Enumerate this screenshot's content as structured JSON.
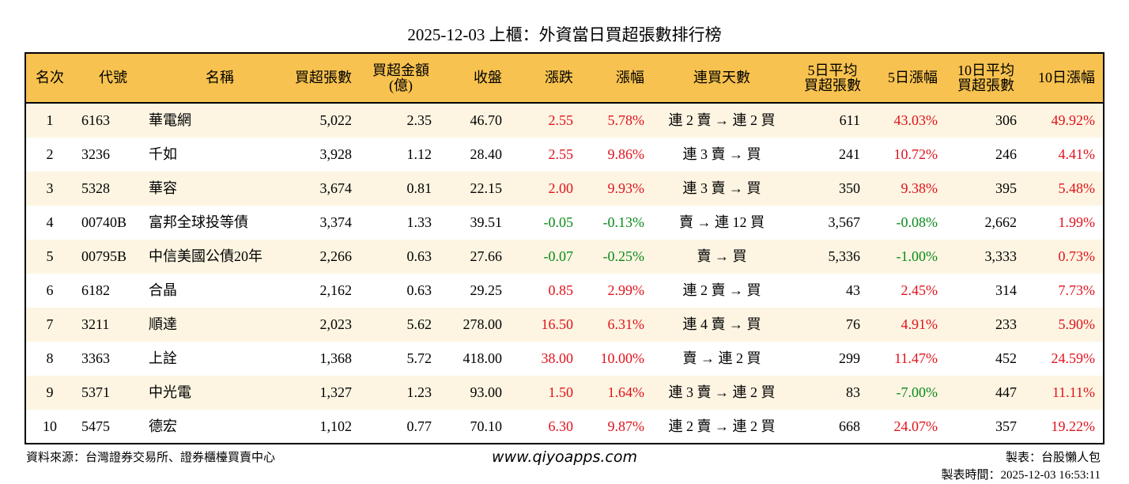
{
  "title": "2025-12-03 上櫃：外資當日買超張數排行榜",
  "headers": [
    "名次",
    "代號",
    "名稱",
    "買超張數",
    "買超金額\n(億)",
    "收盤",
    "漲跌",
    "漲幅",
    "連買天數",
    "5日平均\n買超張數",
    "5日漲幅",
    "10日平均\n買超張數",
    "10日漲幅"
  ],
  "colors": {
    "header_bg": "#f7c24f",
    "row_alt": "#fdf5e2",
    "up": "#e0121b",
    "down": "#0a8a1a"
  },
  "rows": [
    [
      "1",
      "6163",
      "華電網",
      "5,022",
      "2.35",
      "46.70",
      "2.55",
      "5.78%",
      "連 2 賣 → 連 2 買",
      "611",
      "43.03%",
      "306",
      "49.92%"
    ],
    [
      "2",
      "3236",
      "千如",
      "3,928",
      "1.12",
      "28.40",
      "2.55",
      "9.86%",
      "連 3 賣 → 買",
      "241",
      "10.72%",
      "246",
      "4.41%"
    ],
    [
      "3",
      "5328",
      "華容",
      "3,674",
      "0.81",
      "22.15",
      "2.00",
      "9.93%",
      "連 3 賣 → 買",
      "350",
      "9.38%",
      "395",
      "5.48%"
    ],
    [
      "4",
      "00740B",
      "富邦全球投等債",
      "3,374",
      "1.33",
      "39.51",
      "-0.05",
      "-0.13%",
      "賣 → 連 12 買",
      "3,567",
      "-0.08%",
      "2,662",
      "1.99%"
    ],
    [
      "5",
      "00795B",
      "中信美國公債20年",
      "2,266",
      "0.63",
      "27.66",
      "-0.07",
      "-0.25%",
      "賣 → 買",
      "5,336",
      "-1.00%",
      "3,333",
      "0.73%"
    ],
    [
      "6",
      "6182",
      "合晶",
      "2,162",
      "0.63",
      "29.25",
      "0.85",
      "2.99%",
      "連 2 賣 → 買",
      "43",
      "2.45%",
      "314",
      "7.73%"
    ],
    [
      "7",
      "3211",
      "順達",
      "2,023",
      "5.62",
      "278.00",
      "16.50",
      "6.31%",
      "連 4 賣 → 買",
      "76",
      "4.91%",
      "233",
      "5.90%"
    ],
    [
      "8",
      "3363",
      "上詮",
      "1,368",
      "5.72",
      "418.00",
      "38.00",
      "10.00%",
      "賣 → 連 2 買",
      "299",
      "11.47%",
      "452",
      "24.59%"
    ],
    [
      "9",
      "5371",
      "中光電",
      "1,327",
      "1.23",
      "93.00",
      "1.50",
      "1.64%",
      "連 3 賣 → 連 2 買",
      "83",
      "-7.00%",
      "447",
      "11.11%"
    ],
    [
      "10",
      "5475",
      "德宏",
      "1,102",
      "0.77",
      "70.10",
      "6.30",
      "9.87%",
      "連 2 賣 → 連 2 買",
      "668",
      "24.07%",
      "357",
      "19.22%"
    ]
  ],
  "footer": {
    "source": "資料來源：台灣證券交易所、證券櫃檯買賣中心",
    "url": "www.qiyoapps.com",
    "maker": "製表：台股懶人包",
    "time": "製表時間：2025-12-03 16:53:11"
  }
}
